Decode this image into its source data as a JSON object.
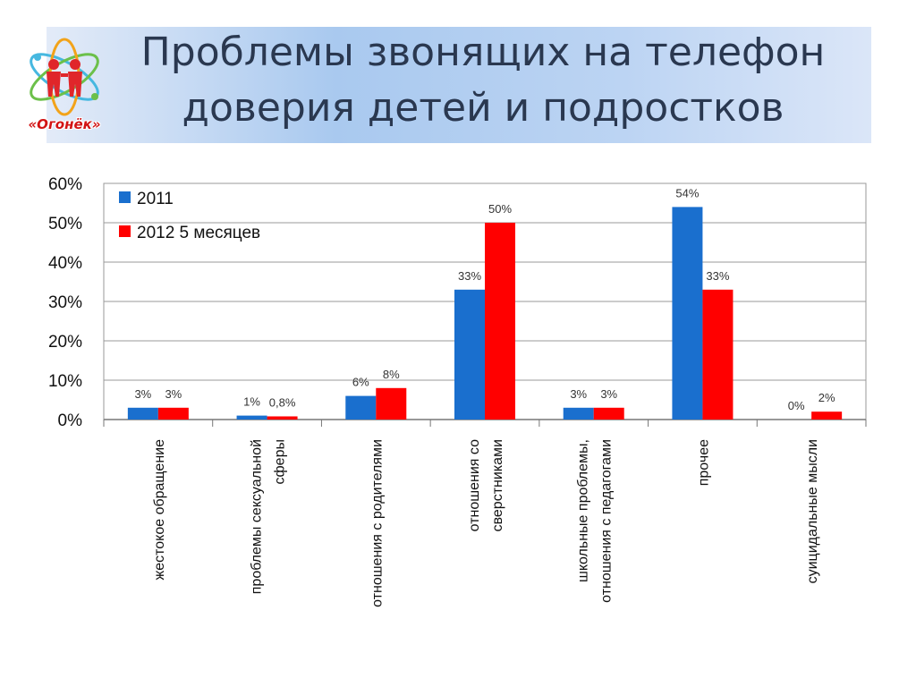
{
  "header": {
    "title_line1": "Проблемы звонящих на телефон",
    "title_line2": "доверия детей и подростков",
    "logo_text": "«Огонёк»"
  },
  "colors": {
    "series_2011": "#1a6fce",
    "series_2012": "#ff0000",
    "title_text": "#2a3850"
  },
  "chart_data": {
    "type": "bar",
    "title": "",
    "xlabel": "",
    "ylabel": "",
    "ylim": [
      0,
      60
    ],
    "yticks": [
      "0%",
      "10%",
      "20%",
      "30%",
      "40%",
      "50%",
      "60%"
    ],
    "grid": true,
    "legend": "top-left",
    "categories": [
      [
        "жестокое обращение"
      ],
      [
        "проблемы сексуальной",
        "сферы"
      ],
      [
        "отношения с родителями"
      ],
      [
        "отношения со",
        "сверстниками"
      ],
      [
        "школьные проблемы,",
        "отношения с педагогами"
      ],
      [
        "прочее"
      ],
      [
        "суицидальные мысли"
      ]
    ],
    "series": [
      {
        "name": "2011",
        "values": [
          3,
          1,
          6,
          33,
          3,
          54,
          0
        ],
        "labels": [
          "3%",
          "1%",
          "6%",
          "33%",
          "3%",
          "54%",
          "0%"
        ]
      },
      {
        "name": "2012  5 месяцев",
        "values": [
          3,
          0.8,
          8,
          50,
          3,
          33,
          2
        ],
        "labels": [
          "3%",
          "0,8%",
          "8%",
          "50%",
          "3%",
          "33%",
          "2%"
        ]
      }
    ]
  }
}
